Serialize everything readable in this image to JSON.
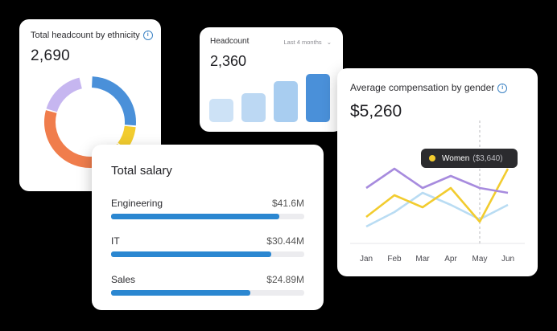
{
  "ethnicity": {
    "title": "Total headcount by ethnicity",
    "total": "2,690",
    "segments": [
      {
        "value": 0.26,
        "color": "#4a90d9"
      },
      {
        "value": 0.09,
        "color": "#f2cc2f"
      },
      {
        "value": 0.09,
        "color": "#f2cc2f"
      },
      {
        "value": 0.35,
        "color": "#f07d4c"
      },
      {
        "value": 0.17,
        "color": "#c6b6f0"
      }
    ]
  },
  "headcount": {
    "title": "Headcount",
    "range": "Last 4 months",
    "total": "2,360",
    "bars": [
      {
        "value": 0.47,
        "color": "#cde2f6"
      },
      {
        "value": 0.58,
        "color": "#bcd8f3"
      },
      {
        "value": 0.82,
        "color": "#a8cdf0"
      },
      {
        "value": 0.97,
        "color": "#4a90d9"
      }
    ]
  },
  "compensation": {
    "title": "Average compensation by gender",
    "total": "$5,260",
    "tooltip": {
      "label": "Women",
      "value": "($3,640)"
    },
    "chart_data": {
      "type": "line",
      "categories": [
        "Jan",
        "Feb",
        "Mar",
        "Apr",
        "May",
        "Jun"
      ],
      "series": [
        {
          "color": "#a78bde",
          "values": [
            4.35,
            4.75,
            4.35,
            4.6,
            4.35,
            4.25
          ]
        },
        {
          "color": "#f2cc2f",
          "values": [
            3.75,
            4.2,
            3.95,
            4.35,
            3.65,
            4.75
          ]
        },
        {
          "color": "#b9dcf3",
          "values": [
            3.55,
            3.85,
            4.25,
            4.0,
            3.7,
            4.0
          ]
        }
      ],
      "highlight_index": 4
    }
  },
  "salary": {
    "title": "Total salary",
    "rows": [
      {
        "label": "Engineering",
        "value": "$41.6M",
        "fraction": 0.87
      },
      {
        "label": "IT",
        "value": "$30.44M",
        "fraction": 0.83
      },
      {
        "label": "Sales",
        "value": "$24.89M",
        "fraction": 0.72
      }
    ]
  }
}
